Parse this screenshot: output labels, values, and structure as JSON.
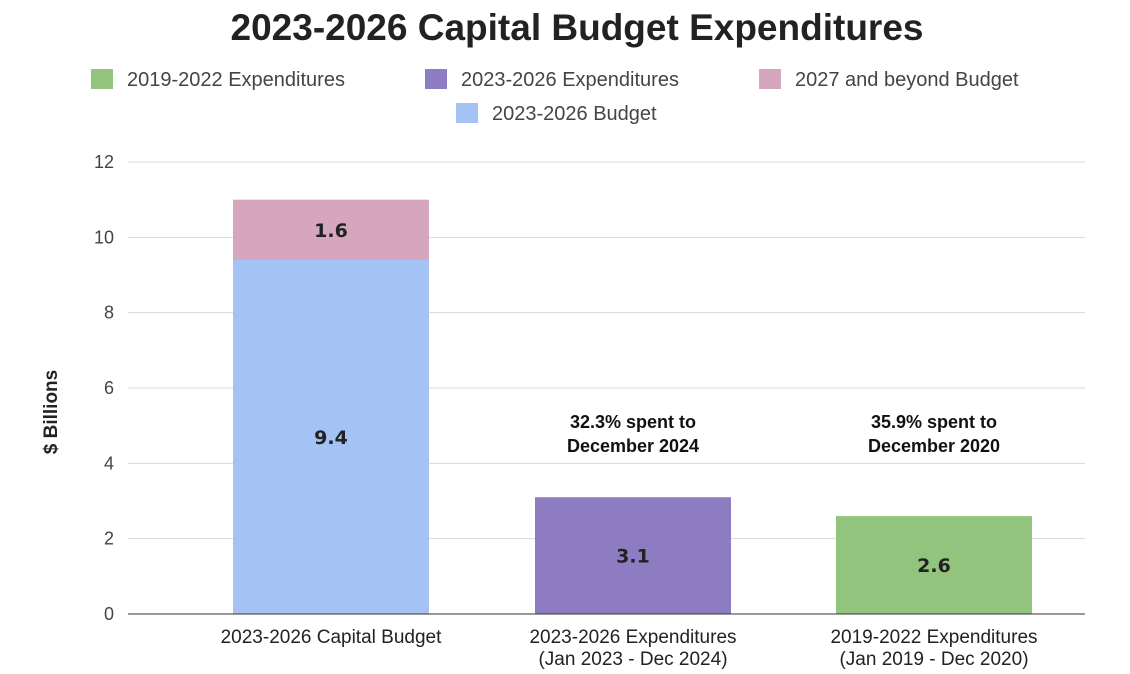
{
  "chart_data": {
    "type": "bar",
    "stacked": true,
    "title": "2023-2026 Capital Budget Expenditures",
    "ylabel": "$ Billions",
    "xlabel": "",
    "ylim": [
      0,
      12
    ],
    "yticks": [
      0,
      2,
      4,
      6,
      8,
      10,
      12
    ],
    "grid": true,
    "legend_position": "top",
    "categories": [
      {
        "line1": "2023-2026 Capital Budget",
        "line2": ""
      },
      {
        "line1": "2023-2026 Expenditures",
        "line2": "(Jan 2023 - Dec 2024)"
      },
      {
        "line1": "2019-2022 Expenditures",
        "line2": "(Jan 2019 - Dec 2020)"
      }
    ],
    "series": [
      {
        "name": "2019-2022 Expenditures",
        "color": "#93c47d",
        "values": [
          0,
          0,
          2.6
        ]
      },
      {
        "name": "2023-2026 Expenditures",
        "color": "#8e7cc3",
        "values": [
          0,
          3.1,
          0
        ]
      },
      {
        "name": "2027 and beyond Budget",
        "color": "#d5a6bd",
        "values": [
          1.6,
          0,
          0
        ]
      },
      {
        "name": "2023-2026 Budget",
        "color": "#a4c2f4",
        "values": [
          9.4,
          0,
          0
        ]
      }
    ],
    "stack_order": [
      "2023-2026 Budget",
      "2027 and beyond Budget",
      "2023-2026 Expenditures",
      "2019-2022 Expenditures"
    ],
    "annotations": [
      {
        "category_index": 1,
        "line1": "32.3% spent to",
        "line2": "December 2024"
      },
      {
        "category_index": 2,
        "line1": "35.9% spent to",
        "line2": "December 2020"
      }
    ]
  }
}
